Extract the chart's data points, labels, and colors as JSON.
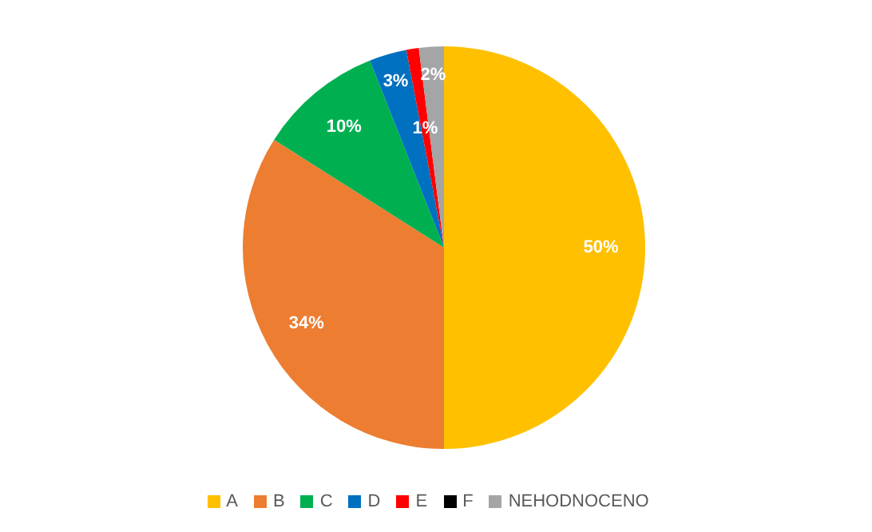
{
  "chart_data": {
    "type": "pie",
    "categories": [
      "A",
      "B",
      "C",
      "D",
      "E",
      "F",
      "NEHODNOCENO"
    ],
    "values": [
      50,
      34,
      10,
      3,
      1,
      0,
      2
    ],
    "colors": [
      "#ffc000",
      "#ed7d31",
      "#00b050",
      "#0070c0",
      "#ff0000",
      "#000000",
      "#a5a5a5"
    ],
    "value_labels": [
      "50%",
      "34%",
      "10%",
      "3%",
      "1%",
      null,
      "2%"
    ],
    "legend": "bottom"
  }
}
